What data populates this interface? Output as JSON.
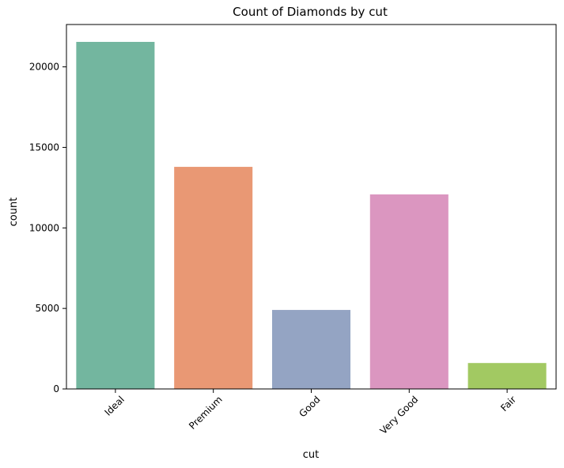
{
  "chart_data": {
    "type": "bar",
    "title": "Count of Diamonds by cut",
    "xlabel": "cut",
    "ylabel": "count",
    "categories": [
      "Ideal",
      "Premium",
      "Good",
      "Very Good",
      "Fair"
    ],
    "values": [
      21551,
      13791,
      4906,
      12082,
      1610
    ],
    "colors": [
      "#73B69F",
      "#E99874",
      "#94A4C3",
      "#DB96C0",
      "#A2C962"
    ],
    "ylim": [
      0,
      22630
    ],
    "yticks": [
      0,
      5000,
      10000,
      15000,
      20000
    ],
    "ytick_labels": [
      "0",
      "5000",
      "10000",
      "15000",
      "20000"
    ],
    "xtick_rotation": 45,
    "grid": false,
    "legend": "none"
  }
}
